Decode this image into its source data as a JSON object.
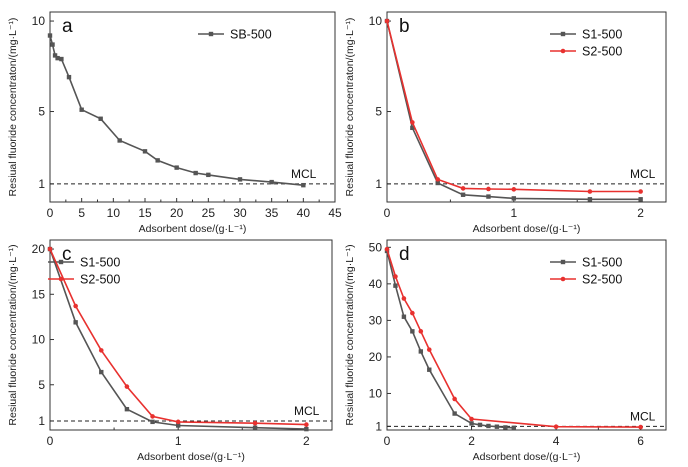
{
  "chart_data": [
    {
      "type": "line",
      "panel": "a",
      "xlabel": "Adsorbent dose/(g·L⁻¹)",
      "ylabel": "Resiual fluoride concentraton/(mg·L⁻¹)",
      "xlim": [
        0,
        45
      ],
      "ylim": [
        0,
        10.5
      ],
      "xticks": [
        0,
        5,
        10,
        15,
        20,
        25,
        30,
        35,
        40,
        45
      ],
      "xtick_labels": [
        "0",
        "5",
        "10",
        "15",
        "20",
        "25",
        "30",
        "35",
        "40",
        "45"
      ],
      "yticks": [
        1,
        5,
        10
      ],
      "ytick_labels": [
        "1",
        "5",
        "10"
      ],
      "mcl": 1,
      "mcl_label": "MCL",
      "legend_position": "top-right",
      "series": [
        {
          "name": "SB-500",
          "color": "#555555",
          "x": [
            0,
            0.4,
            0.8,
            1.2,
            1.8,
            3,
            5,
            8,
            11,
            15,
            17,
            20,
            23,
            25,
            30,
            35,
            40
          ],
          "y": [
            9.2,
            8.7,
            8.1,
            7.95,
            7.9,
            6.9,
            5.1,
            4.6,
            3.4,
            2.8,
            2.3,
            1.9,
            1.6,
            1.5,
            1.25,
            1.1,
            0.93
          ]
        }
      ]
    },
    {
      "type": "line",
      "panel": "b",
      "xlabel": "Adsorbent dose/(g·L⁻¹)",
      "ylabel": "Resiual fluoride concentraton/(mg·L⁻¹)",
      "xlim": [
        0,
        2.2
      ],
      "ylim": [
        0,
        10.5
      ],
      "xticks": [
        0,
        1,
        2
      ],
      "xtick_labels": [
        "0",
        "1",
        "2"
      ],
      "yticks": [
        1,
        5,
        10
      ],
      "ytick_labels": [
        "1",
        "5",
        "10"
      ],
      "mcl": 1,
      "mcl_label": "MCL",
      "legend_position": "top-right",
      "series": [
        {
          "name": "S1-500",
          "color": "#555555",
          "x": [
            0,
            0.2,
            0.4,
            0.6,
            0.8,
            1.0,
            1.6,
            2.0
          ],
          "y": [
            10,
            4.1,
            1.05,
            0.4,
            0.3,
            0.2,
            0.15,
            0.15
          ]
        },
        {
          "name": "S2-500",
          "color": "#e8312f",
          "x": [
            0,
            0.2,
            0.4,
            0.6,
            0.8,
            1.0,
            1.6,
            2.0
          ],
          "y": [
            10,
            4.4,
            1.25,
            0.75,
            0.72,
            0.7,
            0.58,
            0.58
          ]
        }
      ]
    },
    {
      "type": "line",
      "panel": "c",
      "xlabel": "Adsorbent dose/(g·L⁻¹)",
      "ylabel": "Resiual fluoride concentration/(mg·L⁻¹)",
      "xlim": [
        0,
        2.2
      ],
      "ylim": [
        0,
        21
      ],
      "xticks": [
        0,
        1,
        2
      ],
      "xtick_labels": [
        "0",
        "1",
        "2"
      ],
      "yticks": [
        1,
        5,
        10,
        15,
        20
      ],
      "ytick_labels": [
        "1",
        "5",
        "10",
        "15",
        "20"
      ],
      "mcl": 1,
      "mcl_label": "MCL",
      "legend_position": "top-left",
      "series": [
        {
          "name": "S1-500",
          "color": "#555555",
          "x": [
            0,
            0.2,
            0.4,
            0.6,
            0.8,
            1.0,
            1.6,
            2.0
          ],
          "y": [
            20,
            11.9,
            6.4,
            2.3,
            0.9,
            0.5,
            0.25,
            0.1
          ]
        },
        {
          "name": "S2-500",
          "color": "#e8312f",
          "x": [
            0,
            0.2,
            0.4,
            0.6,
            0.8,
            1.0,
            1.6,
            2.0
          ],
          "y": [
            20,
            13.7,
            8.8,
            4.8,
            1.5,
            0.9,
            0.75,
            0.6
          ]
        }
      ]
    },
    {
      "type": "line",
      "panel": "d",
      "xlabel": "Adsorbent dose/(g·L⁻¹)",
      "ylabel": "Resiual fluoride concentration/(mg·L⁻¹)",
      "xlim": [
        0,
        6.6
      ],
      "ylim": [
        0,
        52
      ],
      "xticks": [
        0,
        2,
        4,
        6
      ],
      "xtick_labels": [
        "0",
        "2",
        "4",
        "6"
      ],
      "yticks": [
        1,
        10,
        20,
        30,
        40,
        50
      ],
      "ytick_labels": [
        "1",
        "10",
        "20",
        "30",
        "40",
        "50"
      ],
      "mcl": 1,
      "mcl_label": "MCL",
      "legend_position": "top-right",
      "series": [
        {
          "name": "S1-500",
          "color": "#555555",
          "x": [
            0,
            0.2,
            0.4,
            0.6,
            0.8,
            1.0,
            1.6,
            2.0,
            2.2,
            2.4,
            2.6,
            2.8,
            3.0
          ],
          "y": [
            49,
            39.5,
            31,
            27,
            21.5,
            16.5,
            4.5,
            1.8,
            1.4,
            1.1,
            0.9,
            0.7,
            0.6
          ]
        },
        {
          "name": "S2-500",
          "color": "#e8312f",
          "x": [
            0,
            0.2,
            0.4,
            0.6,
            0.8,
            1.0,
            1.6,
            2.0,
            4.0,
            6.0
          ],
          "y": [
            49.5,
            42,
            36,
            32,
            27,
            22,
            8.5,
            3,
            0.9,
            0.8
          ]
        }
      ]
    }
  ]
}
